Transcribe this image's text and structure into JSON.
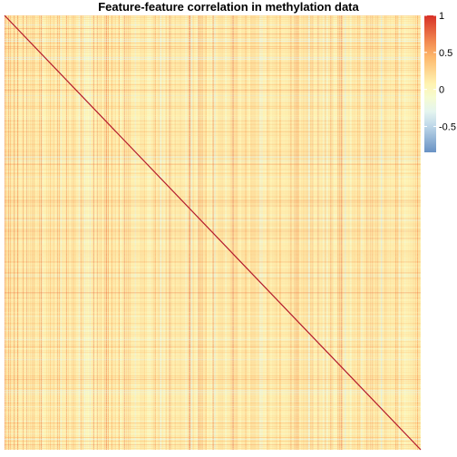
{
  "chart_data": {
    "type": "heatmap",
    "title": "Feature-feature correlation in methylation data",
    "xlabel": "",
    "ylabel": "",
    "value_range": [
      -0.85,
      1
    ],
    "diagonal_value": 1,
    "legend": {
      "placement": "right-top",
      "ticks": [
        {
          "value": 1,
          "label": "1"
        },
        {
          "value": 0.5,
          "label": "0.5"
        },
        {
          "value": 0,
          "label": "0"
        },
        {
          "value": -0.5,
          "label": "-0.5"
        }
      ]
    },
    "colors": {
      "low": "#4575b4",
      "mid_low": "#e0f3f8",
      "mid": "#ffffbf",
      "mid_high": "#fdae61",
      "high": "#d73027",
      "diagonal": "#b2182b"
    }
  }
}
